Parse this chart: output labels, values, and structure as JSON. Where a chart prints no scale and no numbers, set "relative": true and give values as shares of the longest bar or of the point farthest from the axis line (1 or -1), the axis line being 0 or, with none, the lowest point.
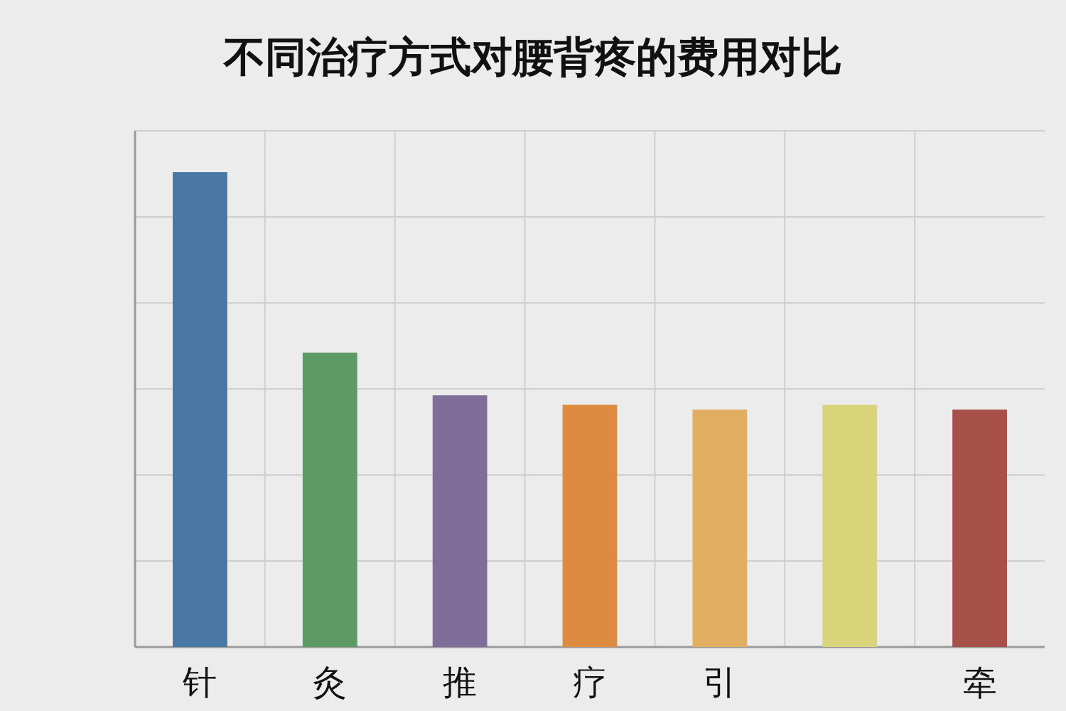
{
  "chart_data": {
    "type": "bar",
    "title": "不同治疗方式对腰背疼的费用对比",
    "categories": [
      "针",
      "灸",
      "推",
      "疗",
      "引",
      null,
      "牵"
    ],
    "values": [
      1,
      0.62,
      0.53,
      0.51,
      0.5,
      0.51,
      0.5
    ],
    "colors": [
      "#4a78a4",
      "#5e9a66",
      "#7f6e9a",
      "#dc8b40",
      "#e2ae62",
      "#d9d47a",
      "#a8504a"
    ],
    "relative": true,
    "grid": true
  }
}
